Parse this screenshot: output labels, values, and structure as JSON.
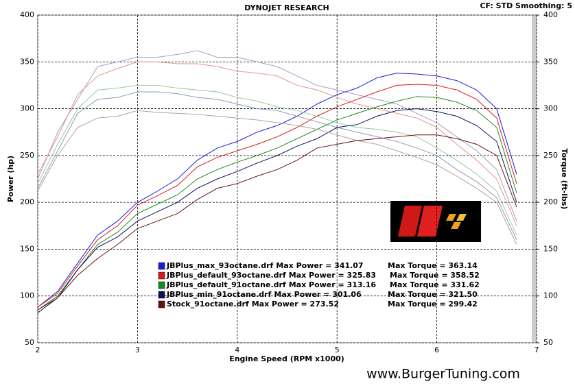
{
  "chart_data": {
    "type": "line",
    "title": "DYNOJET RESEARCH",
    "subtitle": "CF: STD  Smoothing: 5",
    "x_label": "Engine Speed (RPM x1000)",
    "y_label": "Power (hp)",
    "y2_label": "Torque (ft-lbs)",
    "watermark": "www.BurgerTuning.com",
    "xlim": [
      2,
      7
    ],
    "xticks": [
      2,
      3,
      4,
      5,
      6,
      7
    ],
    "ylim": [
      50,
      400
    ],
    "yticks": [
      50,
      100,
      150,
      200,
      250,
      300,
      350,
      400
    ],
    "y2lim": [
      50,
      400
    ],
    "y2ticks": [
      50,
      100,
      150,
      200,
      250,
      300,
      350,
      400
    ],
    "grid": true,
    "x": [
      2.0,
      2.2,
      2.4,
      2.6,
      2.8,
      3.0,
      3.2,
      3.4,
      3.6,
      3.8,
      4.0,
      4.2,
      4.4,
      4.6,
      4.8,
      5.0,
      5.2,
      5.4,
      5.6,
      5.8,
      6.0,
      6.2,
      6.4,
      6.6,
      6.8
    ],
    "runs": [
      {
        "name": "JBPlus_max_93octane.drf",
        "power_text": "Max Power = 341.07",
        "torque_text": "Max Torque = 363.14",
        "color": "#1a1ad8",
        "torque_color": "#a89cc8",
        "power": [
          88,
          105,
          135,
          165,
          180,
          200,
          212,
          225,
          245,
          258,
          265,
          275,
          282,
          292,
          305,
          315,
          322,
          333,
          338,
          337,
          335,
          330,
          320,
          300,
          230
        ],
        "torque": [
          225,
          275,
          310,
          345,
          350,
          355,
          355,
          358,
          362,
          355,
          355,
          350,
          345,
          335,
          325,
          320,
          315,
          310,
          305,
          295,
          285,
          270,
          255,
          235,
          180
        ]
      },
      {
        "name": "JBPlus_default_93octane.drf",
        "power_text": "Max Power = 325.83",
        "torque_text": "Max Torque = 358.52",
        "color": "#d81a1a",
        "torque_color": "#e89090",
        "power": [
          88,
          103,
          132,
          160,
          175,
          197,
          207,
          218,
          238,
          248,
          255,
          262,
          270,
          280,
          292,
          302,
          310,
          318,
          325,
          326,
          325,
          320,
          310,
          290,
          220
        ],
        "torque": [
          230,
          270,
          315,
          335,
          343,
          350,
          350,
          348,
          348,
          345,
          340,
          338,
          335,
          325,
          320,
          312,
          305,
          300,
          295,
          290,
          280,
          262,
          245,
          225,
          175
        ]
      },
      {
        "name": "JBPlus_default_91octane.drf",
        "power_text": "Max Power = 313.16",
        "torque_text": "Max Torque = 331.62",
        "color": "#1a8a1a",
        "torque_color": "#98c898",
        "power": [
          85,
          100,
          128,
          155,
          168,
          188,
          198,
          208,
          225,
          235,
          243,
          250,
          258,
          268,
          278,
          288,
          295,
          302,
          308,
          313,
          312,
          307,
          298,
          280,
          210
        ],
        "torque": [
          220,
          262,
          300,
          320,
          322,
          325,
          325,
          322,
          320,
          318,
          312,
          308,
          302,
          298,
          292,
          285,
          280,
          278,
          275,
          270,
          258,
          245,
          230,
          212,
          165
        ]
      },
      {
        "name": "JBPlus_min_91octane.drf",
        "power_text": "Max Power = 301.06",
        "torque_text": "Max Torque = 321.50",
        "color": "#10105a",
        "torque_color": "#9098b8",
        "power": [
          82,
          98,
          128,
          152,
          163,
          180,
          190,
          200,
          215,
          225,
          233,
          242,
          250,
          260,
          268,
          280,
          283,
          292,
          298,
          300,
          297,
          292,
          282,
          265,
          200
        ],
        "torque": [
          215,
          255,
          295,
          310,
          312,
          318,
          318,
          316,
          312,
          310,
          305,
          300,
          298,
          292,
          286,
          280,
          275,
          270,
          265,
          258,
          250,
          235,
          222,
          205,
          160
        ]
      },
      {
        "name": "Stock_91octane.drf",
        "power_text": "Max Power = 273.52",
        "torque_text": "Max Torque = 299.42",
        "color": "#6a1010",
        "torque_color": "#b8a0a0",
        "power": [
          85,
          98,
          122,
          140,
          155,
          172,
          180,
          188,
          203,
          215,
          220,
          228,
          235,
          245,
          258,
          262,
          266,
          268,
          270,
          272,
          272,
          268,
          262,
          250,
          195
        ],
        "torque": [
          212,
          250,
          280,
          290,
          292,
          298,
          296,
          295,
          294,
          292,
          290,
          288,
          285,
          282,
          278,
          272,
          266,
          262,
          255,
          248,
          240,
          228,
          215,
          200,
          155
        ]
      }
    ]
  }
}
